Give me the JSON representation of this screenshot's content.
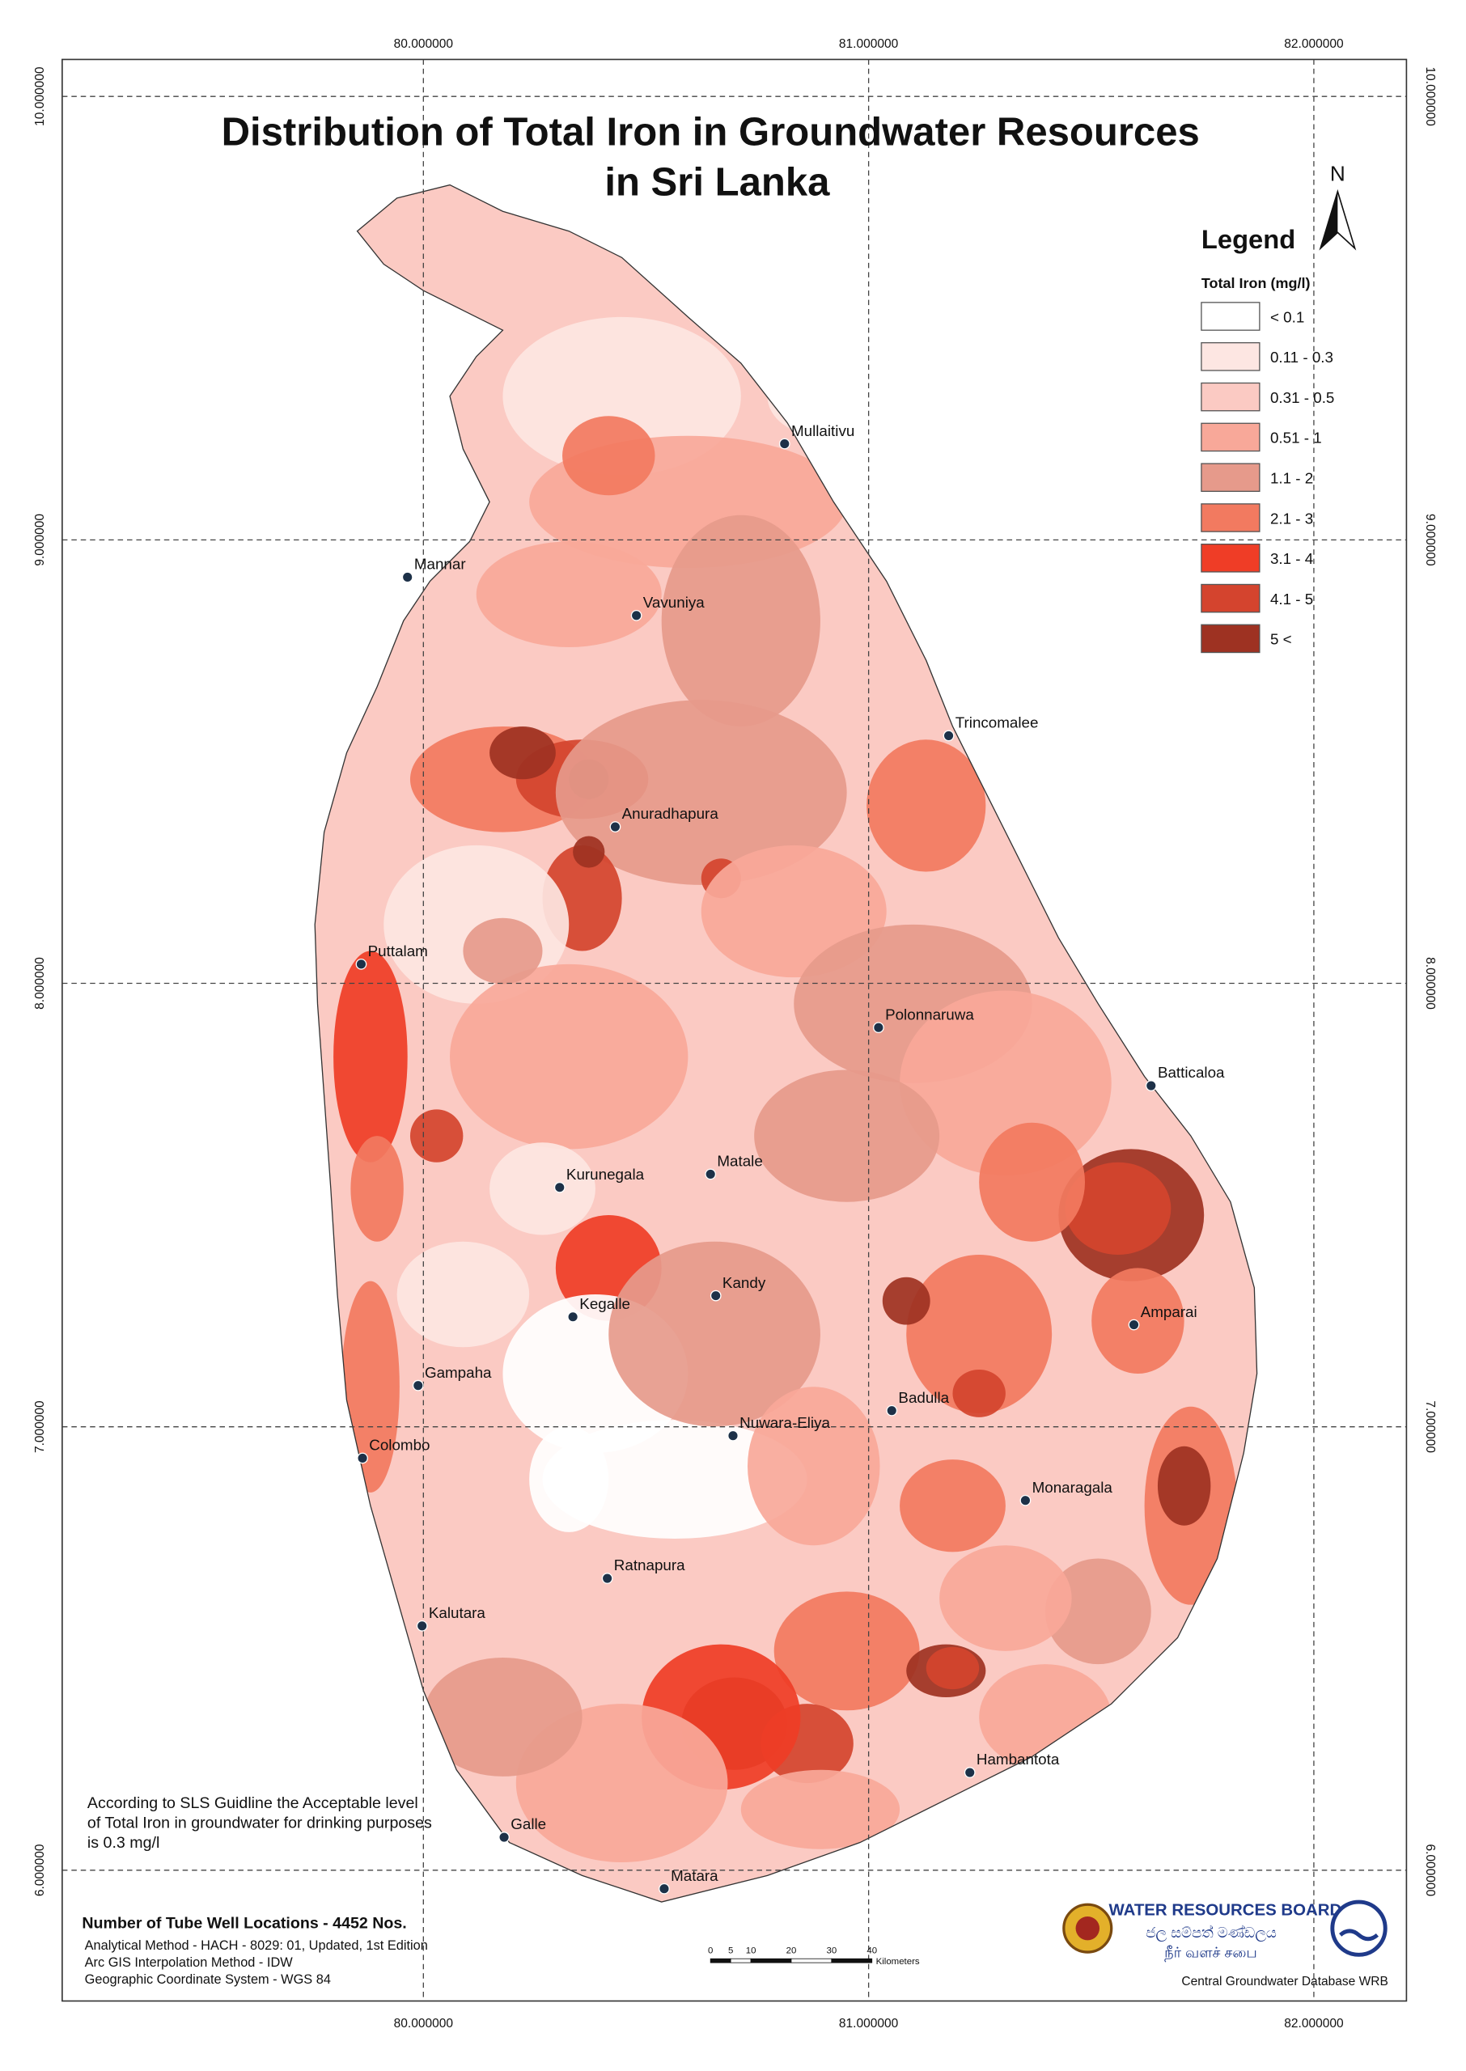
{
  "title": [
    "Distribution of Total Iron in Groundwater Resources",
    "in Sri Lanka"
  ],
  "north_arrow": "N",
  "legend": {
    "title": "Legend",
    "subtitle": "Total Iron (mg/l)",
    "items": [
      {
        "label": "< 0.1",
        "color": "#ffffff"
      },
      {
        "label": "0.11 - 0.3",
        "color": "#fde6e2"
      },
      {
        "label": "0.31 - 0.5",
        "color": "#fbcac3"
      },
      {
        "label": "0.51 - 1",
        "color": "#f8a899"
      },
      {
        "label": "1.1 - 2",
        "color": "#e69a8b"
      },
      {
        "label": "2.1 - 3",
        "color": "#f27a60"
      },
      {
        "label": "3.1 - 4",
        "color": "#ef3d26"
      },
      {
        "label": "4.1 - 5",
        "color": "#d4442e"
      },
      {
        "label": "5 <",
        "color": "#9e3222"
      }
    ]
  },
  "longitude_ticks": [
    {
      "value": 80,
      "label": "80.000000"
    },
    {
      "value": 81,
      "label": "81.000000"
    },
    {
      "value": 82,
      "label": "82.000000"
    }
  ],
  "latitude_ticks": [
    {
      "value": 10,
      "label": "10.000000"
    },
    {
      "value": 9,
      "label": "9.000000"
    },
    {
      "value": 8,
      "label": "8.000000"
    },
    {
      "value": 7,
      "label": "7.000000"
    },
    {
      "value": 6,
      "label": "6.000000"
    }
  ],
  "cities": [
    "Mullaitivu",
    "Mannar",
    "Vavuniya",
    "Trincomalee",
    "Anuradhapura",
    "Puttalam",
    "Polonnaruwa",
    "Batticaloa",
    "Kurunegala",
    "Matale",
    "Kandy",
    "Kegalle",
    "Amparai",
    "Gampaha",
    "Badulla",
    "Nuwara-Eliya",
    "Colombo",
    "Monaragala",
    "Ratnapura",
    "Kalutara",
    "Hambantota",
    "Galle",
    "Matara"
  ],
  "note": [
    "According to SLS Guidline the Acceptable level",
    "of Total Iron in groundwater for drinking purposes",
    "is 0.3  mg/l"
  ],
  "footer": {
    "wells": "Number of Tube Well Locations - 4452 Nos.",
    "lines": [
      "Analytical Method - HACH - 8029: 01, Updated, 1st Edition",
      "Arc GIS Interpolation Method - IDW",
      "Geographic Coordinate System - WGS 84"
    ]
  },
  "scale_bar": {
    "ticks": [
      0,
      5,
      10,
      20,
      30,
      40
    ],
    "unit": "Kilometers"
  },
  "org": {
    "name": "WATER RESOURCES BOARD",
    "sinhala": "ජල සම්පත් මණ්ඩලය",
    "tamil": "நீர் வளச் சபை"
  },
  "credit": "Central Groundwater Database WRB"
}
